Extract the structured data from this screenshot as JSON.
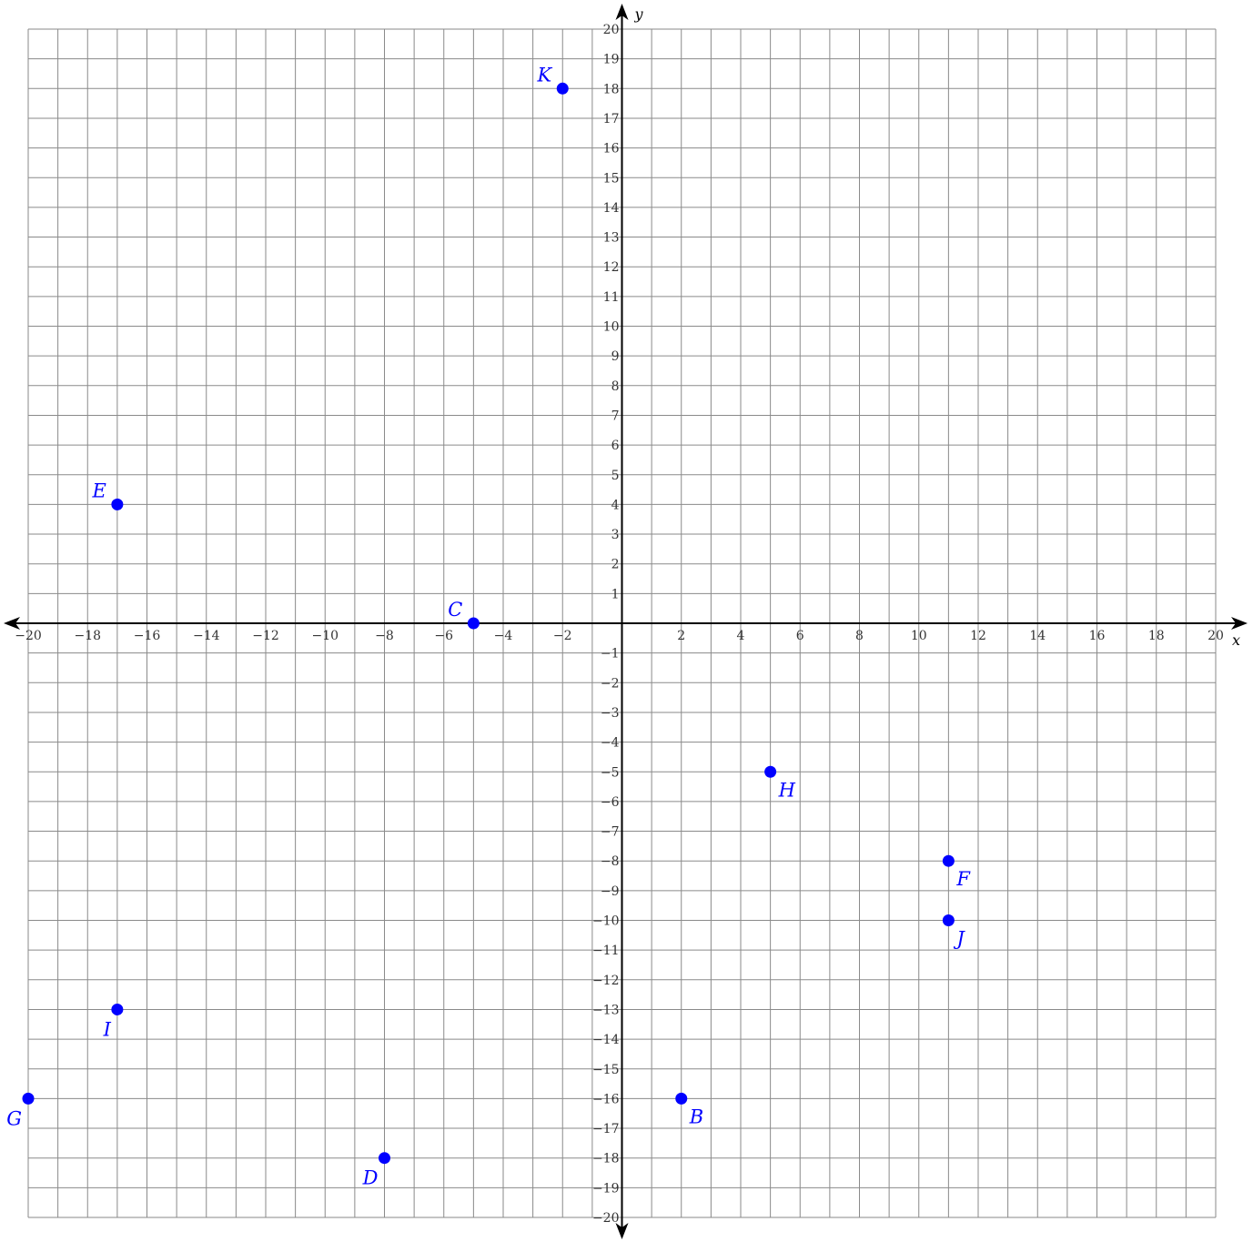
{
  "chart_data": {
    "type": "scatter",
    "title": "",
    "xlabel": "x",
    "ylabel": "y",
    "xlim": [
      -20,
      20
    ],
    "ylim": [
      -20,
      20
    ],
    "grid": true,
    "x_ticks": [
      -20,
      -18,
      -16,
      -14,
      -12,
      -10,
      -8,
      -6,
      -4,
      -2,
      2,
      4,
      6,
      8,
      10,
      12,
      14,
      16,
      18,
      20
    ],
    "y_ticks": [
      -20,
      -19,
      -18,
      -17,
      -16,
      -15,
      -14,
      -13,
      -12,
      -11,
      -10,
      -9,
      -8,
      -7,
      -6,
      -5,
      -4,
      -3,
      -2,
      -1,
      1,
      2,
      3,
      4,
      5,
      6,
      7,
      8,
      9,
      10,
      11,
      12,
      13,
      14,
      15,
      16,
      17,
      18,
      19,
      20
    ],
    "point_color": "#0000ff",
    "points": [
      {
        "label": "K",
        "x": -2,
        "y": 18,
        "label_pos": "upper-left"
      },
      {
        "label": "E",
        "x": -17,
        "y": 4,
        "label_pos": "upper-left"
      },
      {
        "label": "C",
        "x": -5,
        "y": 0,
        "label_pos": "upper-left"
      },
      {
        "label": "H",
        "x": 5,
        "y": -5,
        "label_pos": "lower-right"
      },
      {
        "label": "F",
        "x": 11,
        "y": -8,
        "label_pos": "lower-right"
      },
      {
        "label": "J",
        "x": 11,
        "y": -10,
        "label_pos": "lower-right"
      },
      {
        "label": "I",
        "x": -17,
        "y": -13,
        "label_pos": "lower-left"
      },
      {
        "label": "G",
        "x": -20,
        "y": -16,
        "label_pos": "lower-left"
      },
      {
        "label": "B",
        "x": 2,
        "y": -16,
        "label_pos": "lower-right"
      },
      {
        "label": "D",
        "x": -8,
        "y": -18,
        "label_pos": "lower-left"
      }
    ]
  }
}
